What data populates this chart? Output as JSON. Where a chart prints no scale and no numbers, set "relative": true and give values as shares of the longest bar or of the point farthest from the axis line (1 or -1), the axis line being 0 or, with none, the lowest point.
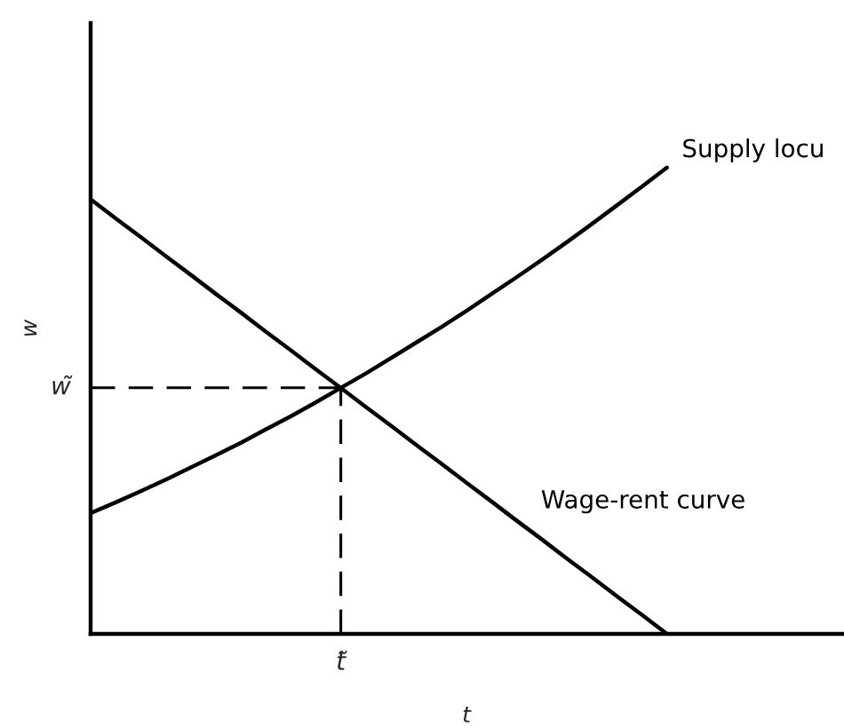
{
  "chart_data": {
    "type": "line",
    "relative": true,
    "xlabel": "t",
    "ylabel": "w",
    "line_style": "solid",
    "categories": [
      null,
      null,
      null,
      null,
      null,
      null,
      null,
      null,
      null,
      null,
      null,
      null,
      null,
      null,
      null,
      null,
      null,
      null,
      null,
      null,
      null,
      null,
      null,
      null,
      null,
      null,
      null,
      null,
      null,
      null,
      null
    ],
    "series": [
      {
        "name": "Supply locu",
        "color": "#000000",
        "values": [
          0.259,
          0.282,
          0.306,
          0.331,
          0.357,
          0.383,
          0.41,
          0.439,
          0.467,
          0.497,
          0.528,
          0.559,
          0.592,
          0.625,
          0.658,
          0.693,
          0.729,
          0.765,
          0.802,
          0.84,
          0.879,
          0.919,
          0.959,
          1,
          null,
          null,
          null,
          null,
          null,
          null,
          null
        ]
      },
      {
        "name": "Wage-rent curve",
        "color": "#000000",
        "values": [
          0.932,
          0.891,
          0.851,
          0.81,
          0.77,
          0.729,
          0.689,
          0.648,
          0.608,
          0.567,
          0.527,
          0.486,
          0.446,
          0.405,
          0.365,
          0.324,
          0.284,
          0.243,
          0.203,
          0.162,
          0.122,
          0.081,
          0.041,
          0,
          null,
          null,
          null,
          null,
          null,
          null,
          null
        ]
      }
    ],
    "ref_lines": [
      {
        "axis": "y",
        "value": 0.528,
        "label": "w̃",
        "line_style": "dashed"
      }
    ],
    "annotations": [
      "t̃"
    ]
  }
}
